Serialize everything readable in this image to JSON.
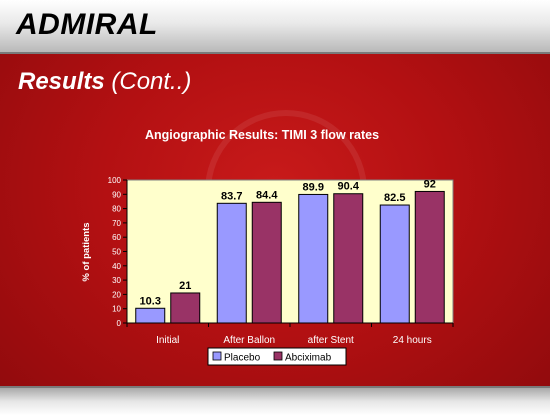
{
  "header": {
    "title": "ADMIRAL"
  },
  "subtitle": {
    "bold": "Results",
    "rest": " (Cont..)"
  },
  "chart_data": {
    "type": "bar",
    "title": "Angiographic Results: TIMI 3 flow rates",
    "ylabel": "% of patients",
    "xlabel": "",
    "ylim": [
      0,
      100
    ],
    "yticks": [
      0,
      10,
      20,
      30,
      40,
      50,
      60,
      70,
      80,
      90,
      100
    ],
    "grid": false,
    "legend_position": "bottom",
    "categories": [
      "Initial",
      "After Ballon",
      "after Stent",
      "24 hours"
    ],
    "series": [
      {
        "name": "Placebo",
        "values": [
          10.3,
          83.7,
          89.9,
          82.5
        ],
        "color": "#9999ff"
      },
      {
        "name": "Abciximab",
        "values": [
          21,
          84.4,
          90.4,
          92
        ],
        "color": "#993366"
      }
    ],
    "data_labels": [
      [
        "10.3",
        "83.7",
        "89.9",
        "82.5"
      ],
      [
        "21",
        "84.4",
        "90.4",
        "92"
      ]
    ],
    "plot_background": "#ffffcc"
  }
}
